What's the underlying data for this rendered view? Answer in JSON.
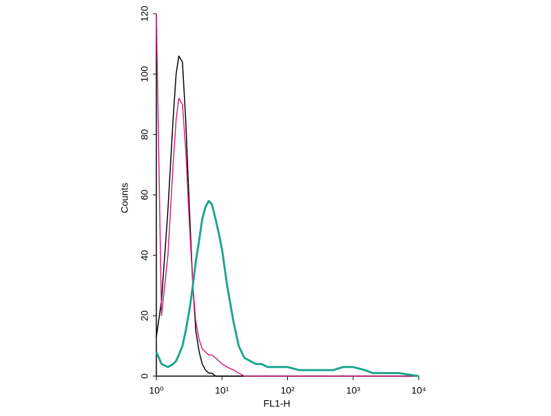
{
  "chart_data": {
    "type": "line",
    "xlabel": "FL1-H",
    "ylabel": "Counts",
    "x": [
      1,
      1.2,
      1.5,
      1.8,
      2,
      2.2,
      2.5,
      2.8,
      3.2,
      3.6,
      4,
      4.5,
      5,
      5.6,
      6.3,
      7,
      8,
      9,
      10,
      12,
      15,
      18,
      22,
      27,
      33,
      40,
      50,
      70,
      100,
      150,
      200,
      300,
      500,
      700,
      1000,
      1500,
      2000,
      3000,
      5000,
      10000
    ],
    "series": [
      {
        "name": "Black",
        "color": "#000000",
        "values": [
          13,
          25,
          55,
          85,
          100,
          106,
          104,
          85,
          55,
          30,
          15,
          8,
          4,
          2,
          1,
          1,
          0,
          0,
          0,
          0,
          0,
          0,
          0,
          0,
          0,
          0,
          0,
          0,
          0,
          0,
          0,
          0,
          0,
          0,
          0,
          0,
          0,
          0,
          0,
          0
        ]
      },
      {
        "name": "Magenta",
        "color": "#d4207a",
        "values": [
          120,
          20,
          40,
          70,
          85,
          92,
          90,
          75,
          50,
          30,
          18,
          12,
          9,
          8,
          7,
          7,
          6,
          5,
          4,
          3,
          2,
          1,
          0,
          0,
          0,
          0,
          0,
          0,
          0,
          0,
          0,
          0,
          0,
          0,
          0,
          0,
          0,
          0,
          0,
          0
        ]
      },
      {
        "name": "Teal",
        "color": "#1fa58c",
        "values": [
          8,
          4,
          3,
          4,
          5,
          7,
          10,
          15,
          22,
          30,
          38,
          45,
          52,
          56,
          58,
          57,
          52,
          47,
          42,
          30,
          18,
          10,
          6,
          5,
          4,
          4,
          3,
          3,
          3,
          2,
          2,
          2,
          2,
          3,
          3,
          2,
          1,
          1,
          1,
          0
        ]
      }
    ],
    "xscale": "log",
    "xlim": [
      1,
      10000
    ],
    "xticks": [
      {
        "value": 1,
        "label": "10⁰"
      },
      {
        "value": 10,
        "label": "10¹"
      },
      {
        "value": 100,
        "label": "10²"
      },
      {
        "value": 1000,
        "label": "10³"
      },
      {
        "value": 10000,
        "label": "10⁴"
      }
    ],
    "ylim": [
      0,
      120
    ],
    "yticks": [
      0,
      20,
      40,
      60,
      80,
      100,
      120
    ]
  }
}
